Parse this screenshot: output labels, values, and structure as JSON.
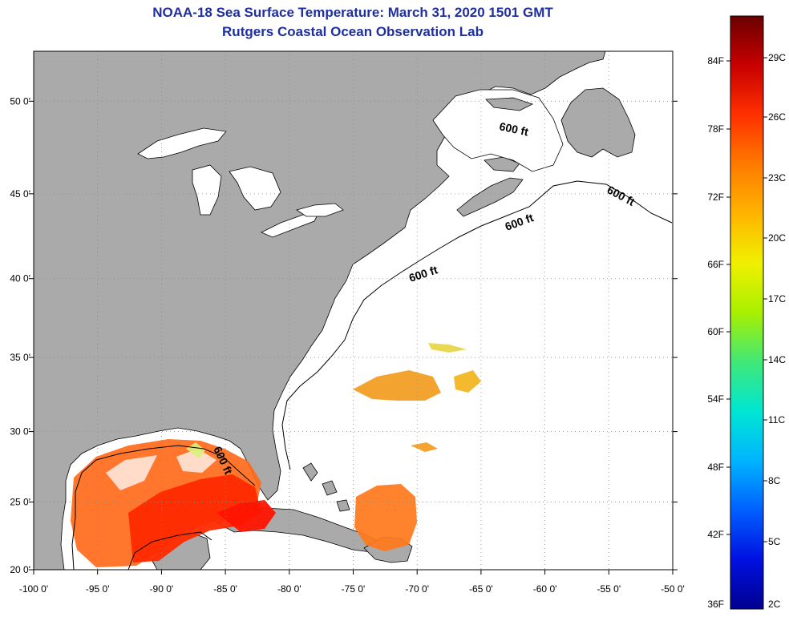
{
  "title": {
    "line1": "NOAA-18 Sea Surface Temperature:  March 31, 2020 1501 GMT",
    "line2": "Rutgers Coastal Ocean Observation Lab"
  },
  "axes": {
    "x_ticks": [
      {
        "value": -100,
        "label": "-100 0'"
      },
      {
        "value": -95,
        "label": "-95 0'"
      },
      {
        "value": -90,
        "label": "-90 0'"
      },
      {
        "value": -85,
        "label": "-85 0'"
      },
      {
        "value": -80,
        "label": "-80 0'"
      },
      {
        "value": -75,
        "label": "-75 0'"
      },
      {
        "value": -70,
        "label": "-70 0'"
      },
      {
        "value": -65,
        "label": "-65 0'"
      },
      {
        "value": -60,
        "label": "-60 0'"
      },
      {
        "value": -55,
        "label": "-55 0'"
      },
      {
        "value": -50,
        "label": "-50 0'"
      }
    ],
    "y_ticks": [
      {
        "value": 50,
        "label": "50 0'"
      },
      {
        "value": 45,
        "label": "45 0'"
      },
      {
        "value": 40,
        "label": "40 0'"
      },
      {
        "value": 35,
        "label": "35 0'"
      },
      {
        "value": 30,
        "label": "30 0'"
      },
      {
        "value": 25,
        "label": "25 0'"
      },
      {
        "value": 20,
        "label": "20 0'"
      }
    ],
    "lon_range": [
      -100,
      -50
    ],
    "lat_range": [
      20,
      52.5
    ]
  },
  "contour_labels": [
    "600 ft",
    "600 ft",
    "600 ft",
    "600 ft",
    "600 ft"
  ],
  "colorbar": {
    "fahrenheit_labels": [
      "84F",
      "78F",
      "72F",
      "66F",
      "60F",
      "54F",
      "48F",
      "42F",
      "36F"
    ],
    "celsius_labels": [
      "29C",
      "26C",
      "23C",
      "20C",
      "17C",
      "14C",
      "11C",
      "8C",
      "5C",
      "2C"
    ],
    "colors": [
      "#6b0000",
      "#c80000",
      "#ff3000",
      "#ff7a00",
      "#ffb400",
      "#f0f000",
      "#a8f000",
      "#40e878",
      "#00e6d2",
      "#00b4ff",
      "#0060ff",
      "#0010e0",
      "#000090"
    ]
  },
  "colors": {
    "land": "#aaaaaa",
    "title": "#1f2f9e",
    "grid": "#888888"
  }
}
